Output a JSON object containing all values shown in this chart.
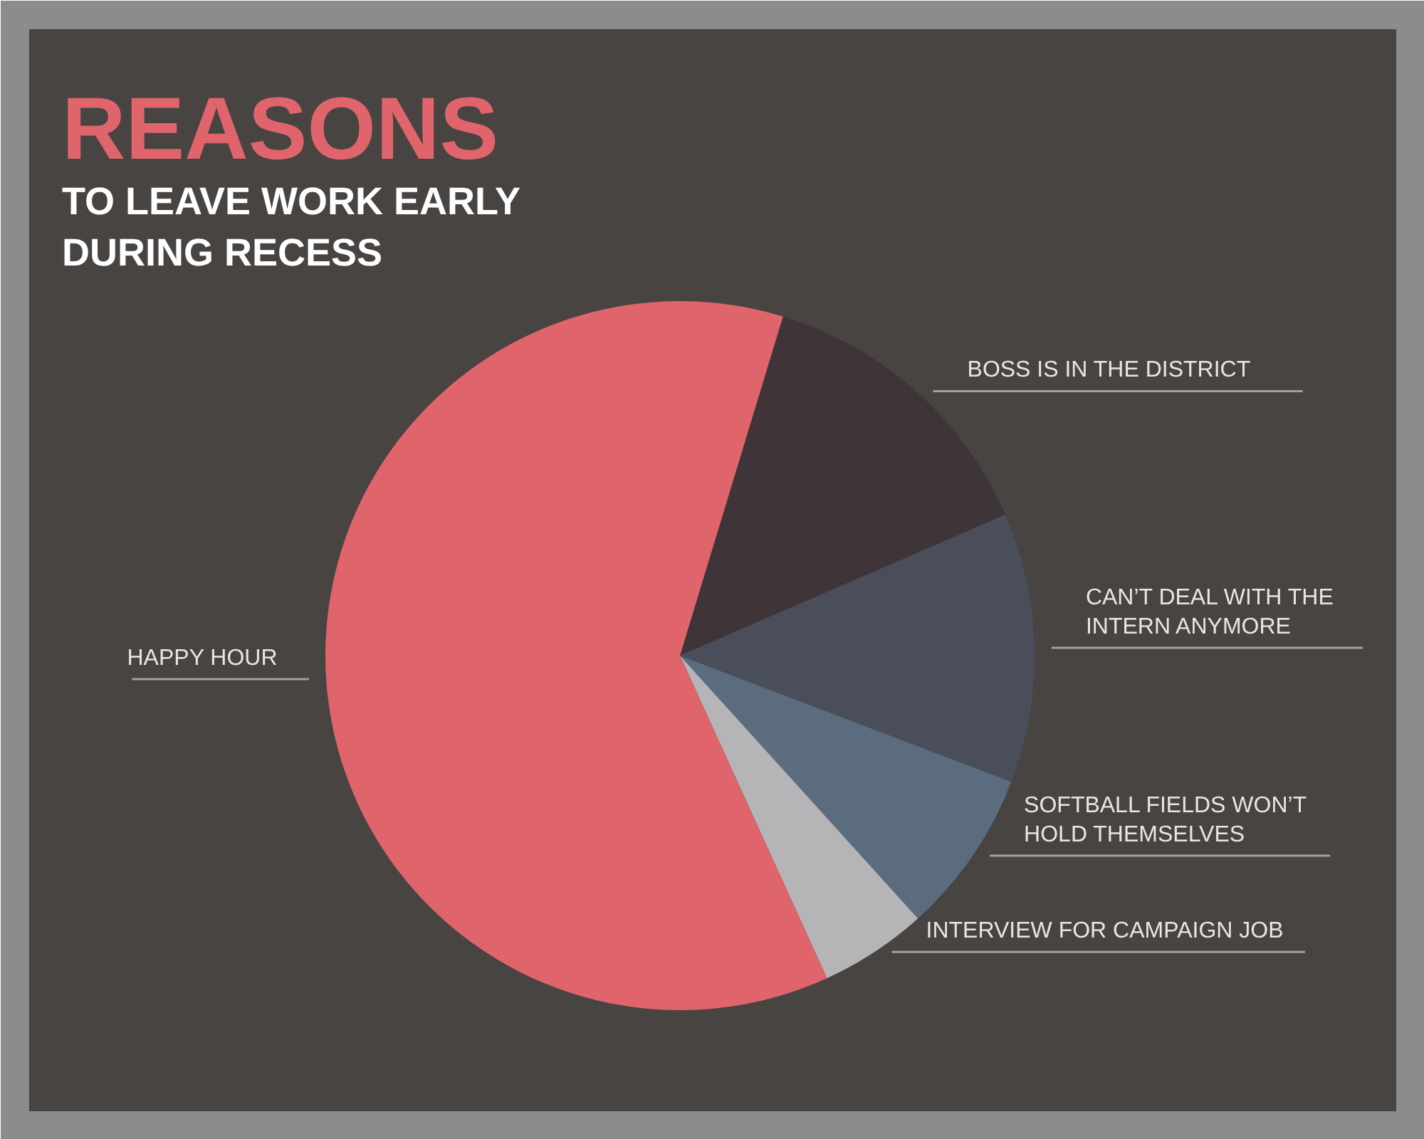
{
  "chart_data": {
    "type": "pie",
    "title": "REASONS",
    "subtitle": "TO LEAVE WORK EARLY\nDURING RECESS",
    "categories": [
      "BOSS IS IN THE DISTRICT",
      "CAN’T DEAL WITH THE\nINTERN ANYMORE",
      "SOFTBALL FIELDS WON’T\nHOLD THEMSELVES",
      "INTERVIEW FOR CAMPAIGN JOB",
      "HAPPY HOUR"
    ],
    "values": [
      13.8,
      12.3,
      7.5,
      4.9,
      61.5
    ],
    "colors": [
      "#3f3539",
      "#4a4e5a",
      "#5a6c7e",
      "#b5b5b7",
      "#e0646b"
    ]
  }
}
